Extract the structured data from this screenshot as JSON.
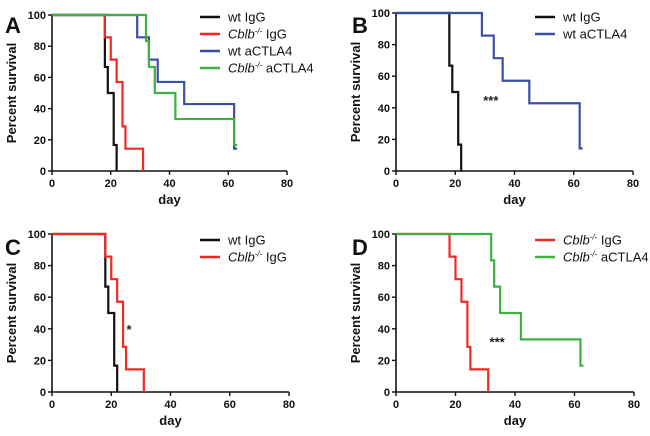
{
  "figure": {
    "series_colors": {
      "wt IgG": "#111111",
      "Cblb IgG": "#ee2a24",
      "wt aCTLA4": "#3b4fa8",
      "Cblb aCTLA4": "#3cb043"
    }
  },
  "chart_data": [
    {
      "panel": "A",
      "type": "line",
      "subtype": "kaplan-meier-step",
      "xlabel": "day",
      "ylabel": "Percent survival",
      "xlim": [
        0,
        80
      ],
      "ylim": [
        0,
        100
      ],
      "xticks": [
        "0",
        "20",
        "40",
        "60",
        "80"
      ],
      "yticks": [
        "0",
        "20",
        "40",
        "60",
        "80",
        "100"
      ],
      "legend_position": "top-right",
      "annotation": "",
      "series": [
        {
          "name": "wt IgG",
          "label_main": "wt IgG",
          "label_italic": "",
          "label_sup": "",
          "label_rest": "",
          "color_key": "wt IgG",
          "x": [
            0,
            18,
            19,
            21,
            22
          ],
          "y": [
            100,
            66.7,
            50,
            16.7,
            0
          ]
        },
        {
          "name": "Cblb-/- IgG",
          "label_main": "",
          "label_italic": "Cblb",
          "label_sup": "-/-",
          "label_rest": " IgG",
          "color_key": "Cblb IgG",
          "x": [
            0,
            18,
            20,
            22,
            24,
            25,
            31
          ],
          "y": [
            100,
            85.7,
            71.4,
            57.1,
            28.6,
            14.3,
            0
          ]
        },
        {
          "name": "wt aCTLA4",
          "label_main": "wt aCTLA4",
          "label_italic": "",
          "label_sup": "",
          "label_rest": "",
          "color_key": "wt aCTLA4",
          "x": [
            0,
            29,
            33,
            36,
            45,
            62,
            63
          ],
          "y": [
            100,
            85.7,
            71.4,
            57.1,
            42.9,
            14.3,
            14.3
          ]
        },
        {
          "name": "Cblb-/- aCTLA4",
          "label_main": "",
          "label_italic": "Cblb",
          "label_sup": "-/-",
          "label_rest": " aCTLA4",
          "color_key": "Cblb aCTLA4",
          "x": [
            0,
            32,
            33,
            35,
            42,
            62,
            63
          ],
          "y": [
            100,
            83.3,
            66.7,
            50,
            33.3,
            16.7,
            16.7
          ]
        }
      ]
    },
    {
      "panel": "B",
      "type": "line",
      "subtype": "kaplan-meier-step",
      "xlabel": "day",
      "ylabel": "Percent survival",
      "xlim": [
        0,
        80
      ],
      "ylim": [
        0,
        100
      ],
      "xticks": [
        "0",
        "20",
        "40",
        "60",
        "80"
      ],
      "yticks": [
        "0",
        "20",
        "40",
        "60",
        "80",
        "100"
      ],
      "legend_position": "top-right",
      "annotation": "***",
      "annotation_at": [
        32,
        45
      ],
      "series": [
        {
          "name": "wt IgG",
          "label_main": "wt IgG",
          "label_italic": "",
          "label_sup": "",
          "label_rest": "",
          "color_key": "wt IgG",
          "x": [
            0,
            18,
            19,
            21,
            22
          ],
          "y": [
            100,
            66.7,
            50,
            16.7,
            0
          ]
        },
        {
          "name": "wt aCTLA4",
          "label_main": "wt aCTLA4",
          "label_italic": "",
          "label_sup": "",
          "label_rest": "",
          "color_key": "wt aCTLA4",
          "x": [
            0,
            29,
            33,
            36,
            45,
            62,
            63
          ],
          "y": [
            100,
            85.7,
            71.4,
            57.1,
            42.9,
            14.3,
            14.3
          ]
        }
      ]
    },
    {
      "panel": "C",
      "type": "line",
      "subtype": "kaplan-meier-step",
      "xlabel": "day",
      "ylabel": "Percent survival",
      "xlim": [
        0,
        80
      ],
      "ylim": [
        0,
        100
      ],
      "xticks": [
        "0",
        "20",
        "40",
        "60",
        "80"
      ],
      "yticks": [
        "0",
        "20",
        "40",
        "60",
        "80",
        "100"
      ],
      "legend_position": "top-right",
      "annotation": "*",
      "annotation_at": [
        26,
        40
      ],
      "series": [
        {
          "name": "wt IgG",
          "label_main": "wt IgG",
          "label_italic": "",
          "label_sup": "",
          "label_rest": "",
          "color_key": "wt IgG",
          "x": [
            0,
            18,
            19,
            21,
            22
          ],
          "y": [
            100,
            66.7,
            50,
            16.7,
            0
          ]
        },
        {
          "name": "Cblb-/- IgG",
          "label_main": "",
          "label_italic": "Cblb",
          "label_sup": "-/-",
          "label_rest": " IgG",
          "color_key": "Cblb IgG",
          "x": [
            0,
            18,
            20,
            22,
            24,
            25,
            31
          ],
          "y": [
            100,
            85.7,
            71.4,
            57.1,
            28.6,
            14.3,
            0
          ]
        }
      ]
    },
    {
      "panel": "D",
      "type": "line",
      "subtype": "kaplan-meier-step",
      "xlabel": "day",
      "ylabel": "Percent survival",
      "xlim": [
        0,
        80
      ],
      "ylim": [
        0,
        100
      ],
      "xticks": [
        "0",
        "20",
        "40",
        "60",
        "80"
      ],
      "yticks": [
        "0",
        "20",
        "40",
        "60",
        "80",
        "100"
      ],
      "legend_position": "top-right",
      "annotation": "***",
      "annotation_at": [
        34,
        32
      ],
      "series": [
        {
          "name": "Cblb-/- IgG",
          "label_main": "",
          "label_italic": "Cblb",
          "label_sup": "-/-",
          "label_rest": " IgG",
          "color_key": "Cblb IgG",
          "x": [
            0,
            18,
            20,
            22,
            24,
            25,
            31
          ],
          "y": [
            100,
            85.7,
            71.4,
            57.1,
            28.6,
            14.3,
            0
          ]
        },
        {
          "name": "Cblb-/- aCTLA4",
          "label_main": "",
          "label_italic": "Cblb",
          "label_sup": "-/-",
          "label_rest": " aCTLA4",
          "color_key": "Cblb aCTLA4",
          "x": [
            0,
            32,
            33,
            35,
            42,
            62,
            63
          ],
          "y": [
            100,
            83.3,
            66.7,
            50,
            33.3,
            16.7,
            16.7
          ]
        }
      ]
    }
  ]
}
